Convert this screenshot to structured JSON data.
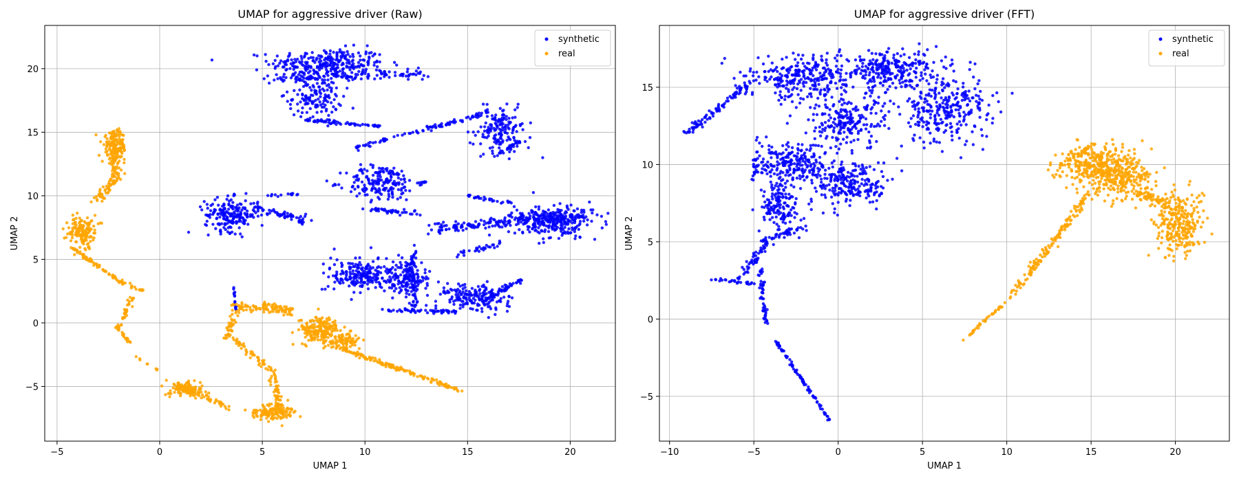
{
  "chart_data": [
    {
      "type": "scatter",
      "title": "UMAP for aggressive driver (Raw)",
      "xlabel": "UMAP 1",
      "ylabel": "UMAP 2",
      "xlim": [
        -5.6,
        22.2
      ],
      "ylim": [
        -9.3,
        23.4
      ],
      "xticks": [
        -5,
        0,
        5,
        10,
        15,
        20
      ],
      "yticks": [
        -5,
        0,
        5,
        10,
        15,
        20
      ],
      "tick_labels": {
        "x": [
          "−5",
          "0",
          "5",
          "10",
          "15",
          "20"
        ],
        "y": [
          "−5",
          "0",
          "5",
          "10",
          "15",
          "20"
        ]
      },
      "grid": true,
      "legend_position": "top-right",
      "series": [
        {
          "name": "synthetic",
          "color": "#0000ff",
          "clusters": [
            {
              "kind": "blob",
              "center": [
                8.2,
                20.4
              ],
              "radii": [
                2.8,
                1.2
              ],
              "n": 280
            },
            {
              "kind": "blob",
              "center": [
                7.6,
                17.8
              ],
              "radii": [
                1.3,
                1.6
              ],
              "n": 140
            },
            {
              "kind": "band",
              "from": [
                4.8,
                19.2
              ],
              "to": [
                13.0,
                19.6
              ],
              "width": 0.6,
              "n": 120
            },
            {
              "kind": "band",
              "from": [
                7.2,
                16.0
              ],
              "to": [
                11.0,
                15.4
              ],
              "width": 0.25,
              "n": 60
            },
            {
              "kind": "band",
              "from": [
                9.5,
                13.8
              ],
              "to": [
                16.0,
                16.5
              ],
              "width": 0.25,
              "n": 90
            },
            {
              "kind": "blob",
              "center": [
                16.6,
                15.2
              ],
              "radii": [
                1.2,
                1.8
              ],
              "n": 160
            },
            {
              "kind": "band",
              "from": [
                16.4,
                13.2
              ],
              "to": [
                17.6,
                14.3
              ],
              "width": 0.2,
              "n": 30
            },
            {
              "kind": "blob",
              "center": [
                10.8,
                11.0
              ],
              "radii": [
                1.7,
                1.4
              ],
              "n": 180
            },
            {
              "kind": "band",
              "from": [
                9.7,
                9.0
              ],
              "to": [
                12.6,
                8.6
              ],
              "width": 0.3,
              "n": 40
            },
            {
              "kind": "band",
              "from": [
                12.5,
                11.0
              ],
              "to": [
                13.0,
                11.1
              ],
              "width": 0.1,
              "n": 8
            },
            {
              "kind": "blob",
              "center": [
                3.5,
                8.5
              ],
              "radii": [
                1.3,
                1.3
              ],
              "n": 200
            },
            {
              "kind": "band",
              "from": [
                4.5,
                9.2
              ],
              "to": [
                7.3,
                7.9
              ],
              "width": 0.4,
              "n": 60
            },
            {
              "kind": "band",
              "from": [
                5.2,
                10.0
              ],
              "to": [
                6.8,
                10.2
              ],
              "width": 0.15,
              "n": 15
            },
            {
              "kind": "band",
              "from": [
                15.0,
                10.0
              ],
              "to": [
                17.2,
                9.4
              ],
              "width": 0.2,
              "n": 30
            },
            {
              "kind": "blob",
              "center": [
                19.1,
                8.0
              ],
              "radii": [
                2.0,
                1.2
              ],
              "n": 260
            },
            {
              "kind": "band",
              "from": [
                13.3,
                7.4
              ],
              "to": [
                20.8,
                8.6
              ],
              "width": 0.6,
              "n": 200
            },
            {
              "kind": "band",
              "from": [
                14.2,
                5.2
              ],
              "to": [
                16.6,
                6.3
              ],
              "width": 0.3,
              "n": 30
            },
            {
              "kind": "blob",
              "center": [
                9.8,
                3.8
              ],
              "radii": [
                1.7,
                1.3
              ],
              "n": 220
            },
            {
              "kind": "blob",
              "center": [
                12.0,
                3.5
              ],
              "radii": [
                1.0,
                1.5
              ],
              "n": 150
            },
            {
              "kind": "band",
              "from": [
                12.3,
                6.0
              ],
              "to": [
                12.4,
                1.0
              ],
              "width": 0.25,
              "n": 60
            },
            {
              "kind": "band",
              "from": [
                10.5,
                1.0
              ],
              "to": [
                14.5,
                0.9
              ],
              "width": 0.2,
              "n": 60
            },
            {
              "kind": "blob",
              "center": [
                15.3,
                2.0
              ],
              "radii": [
                1.6,
                1.1
              ],
              "n": 170
            },
            {
              "kind": "band",
              "from": [
                15.8,
                1.8
              ],
              "to": [
                17.6,
                3.4
              ],
              "width": 0.25,
              "n": 50
            },
            {
              "kind": "band",
              "from": [
                3.6,
                2.8
              ],
              "to": [
                3.7,
                1.0
              ],
              "width": 0.06,
              "n": 15
            }
          ]
        },
        {
          "name": "real",
          "color": "#ffa500",
          "clusters": [
            {
              "kind": "blob",
              "center": [
                -2.2,
                13.8
              ],
              "radii": [
                0.6,
                1.2
              ],
              "n": 130
            },
            {
              "kind": "band",
              "from": [
                -2.1,
                15.2
              ],
              "to": [
                -2.2,
                11.2
              ],
              "width": 0.35,
              "n": 80
            },
            {
              "kind": "band",
              "from": [
                -2.2,
                11.2
              ],
              "to": [
                -3.2,
                9.5
              ],
              "width": 0.4,
              "n": 50
            },
            {
              "kind": "blob",
              "center": [
                -3.8,
                7.2
              ],
              "radii": [
                0.65,
                1.1
              ],
              "n": 150
            },
            {
              "kind": "band",
              "from": [
                -4.3,
                6.0
              ],
              "to": [
                -2.1,
                3.4
              ],
              "width": 0.15,
              "n": 60
            },
            {
              "kind": "band",
              "from": [
                -2.1,
                3.4
              ],
              "to": [
                -0.8,
                2.5
              ],
              "width": 0.2,
              "n": 25
            },
            {
              "kind": "band",
              "from": [
                -1.3,
                2.0
              ],
              "to": [
                -2.1,
                -0.6
              ],
              "width": 0.2,
              "n": 40
            },
            {
              "kind": "band",
              "from": [
                -2.0,
                -0.6
              ],
              "to": [
                -1.4,
                -1.6
              ],
              "width": 0.12,
              "n": 15
            },
            {
              "kind": "band",
              "from": [
                -1.2,
                -2.6
              ],
              "to": [
                0.1,
                -3.9
              ],
              "width": 0.08,
              "n": 8
            },
            {
              "kind": "blob",
              "center": [
                1.3,
                -5.2
              ],
              "radii": [
                0.9,
                0.5
              ],
              "n": 100
            },
            {
              "kind": "band",
              "from": [
                0.5,
                -4.6
              ],
              "to": [
                3.5,
                -6.8
              ],
              "width": 0.3,
              "n": 60
            },
            {
              "kind": "blob",
              "center": [
                5.5,
                -7.0
              ],
              "radii": [
                1.0,
                0.6
              ],
              "n": 140
            },
            {
              "kind": "band",
              "from": [
                5.8,
                -6.5
              ],
              "to": [
                5.5,
                -3.8
              ],
              "width": 0.3,
              "n": 50
            },
            {
              "kind": "band",
              "from": [
                5.5,
                -3.8
              ],
              "to": [
                3.5,
                -1.2
              ],
              "width": 0.3,
              "n": 50
            },
            {
              "kind": "band",
              "from": [
                3.3,
                -1.2
              ],
              "to": [
                3.7,
                1.2
              ],
              "width": 0.3,
              "n": 40
            },
            {
              "kind": "band",
              "from": [
                3.7,
                1.4
              ],
              "to": [
                6.5,
                0.8
              ],
              "width": 0.35,
              "n": 70
            },
            {
              "kind": "blob",
              "center": [
                7.8,
                -0.6
              ],
              "radii": [
                1.0,
                1.1
              ],
              "n": 200
            },
            {
              "kind": "blob",
              "center": [
                9.0,
                -1.4
              ],
              "radii": [
                0.8,
                0.6
              ],
              "n": 80
            },
            {
              "kind": "band",
              "from": [
                8.8,
                -2.0
              ],
              "to": [
                14.8,
                -5.4
              ],
              "width": 0.2,
              "n": 140
            },
            {
              "kind": "band",
              "from": [
                5.0,
                1.5
              ],
              "to": [
                6.6,
                1.0
              ],
              "width": 0.2,
              "n": 30
            }
          ]
        }
      ]
    },
    {
      "type": "scatter",
      "title": "UMAP for aggressive driver (FFT)",
      "xlabel": "UMAP 1",
      "ylabel": "UMAP 2",
      "xlim": [
        -10.6,
        23.2
      ],
      "ylim": [
        -7.9,
        19.0
      ],
      "xticks": [
        -10,
        -5,
        0,
        5,
        10,
        15,
        20
      ],
      "yticks": [
        -5,
        0,
        5,
        10,
        15
      ],
      "tick_labels": {
        "x": [
          "−10",
          "−5",
          "0",
          "5",
          "10",
          "15",
          "20"
        ],
        "y": [
          "−5",
          "0",
          "5",
          "10",
          "15"
        ]
      },
      "grid": true,
      "legend_position": "top-right",
      "series": [
        {
          "name": "synthetic",
          "color": "#0000ff",
          "clusters": [
            {
              "kind": "blob",
              "center": [
                -2.0,
                15.6
              ],
              "radii": [
                3.5,
                1.4
              ],
              "n": 300
            },
            {
              "kind": "blob",
              "center": [
                3.0,
                16.2
              ],
              "radii": [
                3.0,
                1.3
              ],
              "n": 260
            },
            {
              "kind": "blob",
              "center": [
                6.5,
                13.5
              ],
              "radii": [
                2.6,
                2.2
              ],
              "n": 300
            },
            {
              "kind": "band",
              "from": [
                -9.0,
                12.0
              ],
              "to": [
                -5.2,
                15.3
              ],
              "width": 0.35,
              "n": 90
            },
            {
              "kind": "blob",
              "center": [
                0.5,
                12.8
              ],
              "radii": [
                2.4,
                1.5
              ],
              "n": 200
            },
            {
              "kind": "blob",
              "center": [
                -2.8,
                10.0
              ],
              "radii": [
                2.0,
                1.4
              ],
              "n": 220
            },
            {
              "kind": "blob",
              "center": [
                0.8,
                8.8
              ],
              "radii": [
                2.3,
                1.5
              ],
              "n": 240
            },
            {
              "kind": "blob",
              "center": [
                -3.5,
                7.2
              ],
              "radii": [
                1.2,
                1.6
              ],
              "n": 150
            },
            {
              "kind": "band",
              "from": [
                -4.5,
                5.0
              ],
              "to": [
                -2.0,
                6.0
              ],
              "width": 0.3,
              "n": 40
            },
            {
              "kind": "band",
              "from": [
                -4.1,
                5.0
              ],
              "to": [
                -6.0,
                2.5
              ],
              "width": 0.35,
              "n": 50
            },
            {
              "kind": "band",
              "from": [
                -7.5,
                2.6
              ],
              "to": [
                -5.0,
                2.3
              ],
              "width": 0.15,
              "n": 25
            },
            {
              "kind": "band",
              "from": [
                -4.6,
                3.2
              ],
              "to": [
                -4.3,
                -0.3
              ],
              "width": 0.2,
              "n": 50
            },
            {
              "kind": "band",
              "from": [
                -3.7,
                -1.4
              ],
              "to": [
                -0.5,
                -6.6
              ],
              "width": 0.12,
              "n": 90
            },
            {
              "kind": "band",
              "from": [
                -5.0,
                9.0
              ],
              "to": [
                -4.8,
                12.0
              ],
              "width": 0.2,
              "n": 20
            }
          ]
        },
        {
          "name": "real",
          "color": "#ffa500",
          "clusters": [
            {
              "kind": "blob",
              "center": [
                15.0,
                10.0
              ],
              "radii": [
                2.0,
                1.3
              ],
              "n": 240
            },
            {
              "kind": "blob",
              "center": [
                16.8,
                9.3
              ],
              "radii": [
                1.8,
                1.6
              ],
              "n": 260
            },
            {
              "kind": "blob",
              "center": [
                20.2,
                6.2
              ],
              "radii": [
                1.4,
                2.1
              ],
              "n": 280
            },
            {
              "kind": "band",
              "from": [
                17.8,
                8.2
              ],
              "to": [
                19.5,
                7.5
              ],
              "width": 0.4,
              "n": 60
            },
            {
              "kind": "band",
              "from": [
                14.8,
                8.0
              ],
              "to": [
                10.3,
                1.5
              ],
              "width": 0.35,
              "n": 140
            },
            {
              "kind": "band",
              "from": [
                10.3,
                1.5
              ],
              "to": [
                7.4,
                -1.4
              ],
              "width": 0.12,
              "n": 40
            },
            {
              "kind": "band",
              "from": [
                13.0,
                9.8
              ],
              "to": [
                15.2,
                11.3
              ],
              "width": 0.25,
              "n": 40
            }
          ]
        }
      ]
    }
  ]
}
